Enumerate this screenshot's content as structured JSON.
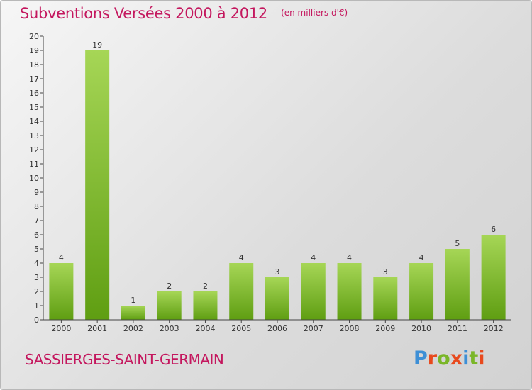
{
  "header": {
    "title": "Subventions Versées 2000 à 2012",
    "unit": "(en milliers d'€)"
  },
  "footer": {
    "commune": "SASSIERGES-SAINT-GERMAIN",
    "logo": "Proxiti",
    "logo_colors": [
      "#3d8fd6",
      "#e8491d",
      "#7ab628",
      "#e8491d",
      "#3d8fd6",
      "#7ab628",
      "#e8491d"
    ]
  },
  "colors": {
    "bar_top": "#a6d656",
    "bar_bottom": "#5f9e12",
    "title": "#c4175e",
    "axis": "#444444"
  },
  "chart_data": {
    "type": "bar",
    "categories": [
      "2000",
      "2001",
      "2002",
      "2003",
      "2004",
      "2005",
      "2006",
      "2007",
      "2008",
      "2009",
      "2010",
      "2011",
      "2012"
    ],
    "values": [
      4,
      19,
      1,
      2,
      2,
      4,
      3,
      4,
      4,
      3,
      4,
      5,
      6
    ],
    "yticks": [
      "0",
      "1",
      "2",
      "3",
      "4",
      "5",
      "6",
      "7",
      "8",
      "9",
      "10",
      "11",
      "12",
      "13",
      "14",
      "15",
      "16",
      "17",
      "18",
      "19",
      "20"
    ],
    "ylim": [
      0,
      20
    ],
    "title": "Subventions Versées 2000 à 2012",
    "xlabel": "",
    "ylabel": "",
    "grid": false
  }
}
